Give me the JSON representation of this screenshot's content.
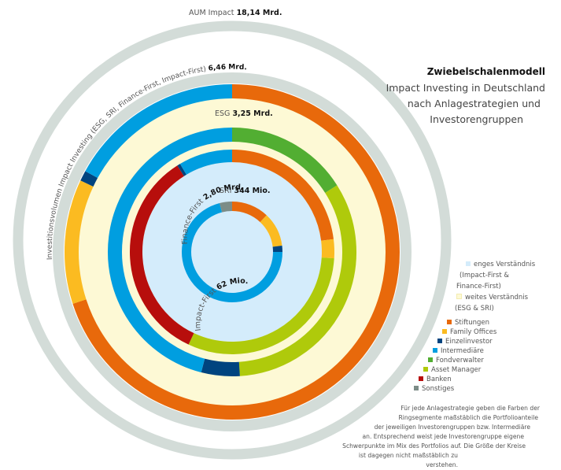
{
  "title": {
    "main": "Zwiebelschalenmodell",
    "sub_lines": [
      "Impact Investing in Deutschland",
      "nach Anlagestrategien und",
      "Investorengruppen"
    ]
  },
  "colors": {
    "stiftungen": "#e8690b",
    "family_offices": "#fbbb21",
    "einzelinvestor": "#00447f",
    "intermediaere": "#009ee0",
    "fondverwalter": "#52ae32",
    "asset_manager": "#afca0b",
    "banken": "#b70e0c",
    "sonstiges": "#7c8c87",
    "gray_ring": "#d3dcd8",
    "narrow_fill": "#d4ecfb",
    "wide_fill": "#fdf9d5"
  },
  "labels": {
    "aum_prefix": "AUM Impact",
    "aum_value": "18,14 Mrd.",
    "invest_prefix": "Investitionsvolumen Impact Investing (ESG, SRI, Finance-First, Impact-First)",
    "invest_value": "6,46 Mrd.",
    "esg_prefix": "ESG",
    "esg_value": "3,25 Mrd.",
    "sri_prefix": "SRI",
    "sri_value": "344 Mio.",
    "ff_prefix": "Finance-First",
    "ff_value": "2,80 Mrd.",
    "if_prefix": "Impact-First",
    "if_value": "62 Mio."
  },
  "legend_scope": [
    {
      "label": "enges Verständnis",
      "extra": [
        "(Impact-First &",
        "Finance-First)"
      ],
      "color": "#d4ecfb"
    },
    {
      "label": "weites Verständnis",
      "extra": [
        "(ESG & SRI)"
      ],
      "color": "#fdf9d5"
    }
  ],
  "legend_groups": [
    {
      "label": "Stiftungen",
      "color": "#e8690b",
      "indent": 48
    },
    {
      "label": "Family Offices",
      "color": "#fbbb21",
      "indent": 42
    },
    {
      "label": "Einzelinvestor",
      "color": "#00447f",
      "indent": 36
    },
    {
      "label": "Intermediäre",
      "color": "#009ee0",
      "indent": 30
    },
    {
      "label": "Fondverwalter",
      "color": "#52ae32",
      "indent": 24
    },
    {
      "label": "Asset Manager",
      "color": "#afca0b",
      "indent": 18
    },
    {
      "label": "Banken",
      "color": "#b70e0c",
      "indent": 12
    },
    {
      "label": "Sonstiges",
      "color": "#7c8c87",
      "indent": 6
    }
  ],
  "footnote": [
    "Für jede Anlagestrategie geben die Farben der",
    "Ringsegmente maßstäblich die Portfolioanteile",
    "der jeweiligen Investorengruppen bzw. Intermediäre",
    "an. Entsprechend weist jede Investorengruppe eigene",
    "Schwerpunkte im Mix des Portfolios auf.  Die Größe der Kreise",
    "ist dagegen nicht maßstäblich zu verstehen."
  ],
  "chart_data": {
    "type": "nested-donut",
    "title": "Zwiebelschalenmodell – Impact Investing in Deutschland nach Anlagestrategien und Investorengruppen",
    "rings": [
      {
        "name": "AUM Impact",
        "value": "18,14 Mrd.",
        "segments": []
      },
      {
        "name": "Investitionsvolumen Impact Investing (ESG, SRI, Finance-First, Impact-First)",
        "value": "6,46 Mrd.",
        "segments": []
      },
      {
        "name": "ESG",
        "value": "3,25 Mrd.",
        "scope": "weites Verständnis",
        "segments": [
          {
            "group": "Stiftungen",
            "share": 0.7
          },
          {
            "group": "Family Offices",
            "share": 0.12
          },
          {
            "group": "Einzelinvestor",
            "share": 0.01
          },
          {
            "group": "Intermediäre",
            "share": 0.17
          }
        ]
      },
      {
        "name": "SRI",
        "value": "344 Mio.",
        "scope": "weites Verständnis",
        "segments": [
          {
            "group": "Fondverwalter",
            "share": 0.16
          },
          {
            "group": "Asset Manager",
            "share": 0.33
          },
          {
            "group": "Einzelinvestor",
            "share": 0.05
          },
          {
            "group": "Intermediäre",
            "share": 0.46
          }
        ]
      },
      {
        "name": "Finance-First",
        "value": "2,80 Mrd.",
        "scope": "enges Verständnis",
        "segments": [
          {
            "group": "Stiftungen",
            "share": 0.23
          },
          {
            "group": "Family Offices",
            "share": 0.03
          },
          {
            "group": "Asset Manager",
            "share": 0.31
          },
          {
            "group": "Banken",
            "share": 0.34
          },
          {
            "group": "Einzelinvestor",
            "share": 0.005
          },
          {
            "group": "Intermediäre",
            "share": 0.085
          }
        ]
      },
      {
        "name": "Impact-First",
        "value": "62 Mio.",
        "scope": "enges Verständnis",
        "segments": [
          {
            "group": "Stiftungen",
            "share": 0.12
          },
          {
            "group": "Family Offices",
            "share": 0.11
          },
          {
            "group": "Einzelinvestor",
            "share": 0.02
          },
          {
            "group": "Intermediäre",
            "share": 0.71
          },
          {
            "group": "Sonstiges",
            "share": 0.04
          }
        ]
      }
    ]
  }
}
